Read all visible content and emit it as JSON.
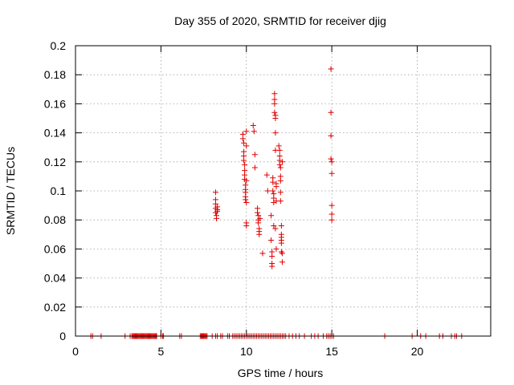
{
  "chart_data": {
    "type": "scatter",
    "title": "Day 355 of 2020, SRMTID for receiver djig",
    "xlabel": "GPS time / hours",
    "ylabel": "SRMTID / TECUs",
    "xlim": [
      0,
      24.3
    ],
    "ylim": [
      0,
      0.2
    ],
    "xticks": [
      0,
      5,
      10,
      15,
      20
    ],
    "xtick_labels": [
      "0",
      "5",
      "10",
      "15",
      "20"
    ],
    "yticks": [
      0,
      0.02,
      0.04,
      0.06,
      0.08,
      0.1,
      0.12,
      0.14,
      0.16,
      0.18,
      0.2
    ],
    "ytick_labels": [
      "0",
      "0.02",
      "0.04",
      "0.06",
      "0.08",
      "0.1",
      "0.12",
      "0.14",
      "0.16",
      "0.18",
      "0.2"
    ],
    "grid": true,
    "marker": "plus",
    "marker_color": "#e00000",
    "series": [
      {
        "x": [
          8.2,
          8.2,
          8.2,
          8.2,
          8.2,
          8.25,
          8.25,
          8.3,
          8.3,
          8.3,
          9.8,
          9.8,
          9.85,
          9.85,
          9.85,
          9.85,
          9.9,
          9.9,
          9.9,
          9.9,
          9.95,
          9.95,
          9.95,
          9.95,
          9.95,
          10.0,
          10.0,
          10.0,
          10.0,
          10.0,
          10.0,
          10.4,
          10.45,
          10.5,
          10.5,
          10.65,
          10.65,
          10.7,
          10.7,
          10.7,
          10.75,
          10.75,
          10.75,
          10.8,
          10.95,
          11.2,
          11.25,
          11.45,
          11.45,
          11.5,
          11.5,
          11.5,
          11.5,
          11.55,
          11.55,
          11.55,
          11.6,
          11.6,
          11.6,
          11.6,
          11.65,
          11.65,
          11.65,
          11.65,
          11.7,
          11.7,
          11.7,
          11.7,
          11.7,
          11.75,
          11.75,
          11.75,
          11.75,
          11.9,
          11.95,
          11.95,
          11.95,
          11.95,
          12.0,
          12.0,
          12.0,
          12.0,
          12.0,
          12.05,
          12.05,
          12.05,
          12.05,
          12.05,
          12.05,
          12.1,
          12.1,
          12.1,
          14.95,
          14.95,
          14.95,
          14.95,
          15.0,
          15.0,
          15.0,
          15.0,
          15.0
        ],
        "y": [
          0.099,
          0.094,
          0.091,
          0.088,
          0.085,
          0.083,
          0.081,
          0.089,
          0.087,
          0.086,
          0.139,
          0.136,
          0.133,
          0.127,
          0.124,
          0.121,
          0.118,
          0.114,
          0.111,
          0.108,
          0.104,
          0.101,
          0.099,
          0.096,
          0.094,
          0.092,
          0.141,
          0.131,
          0.078,
          0.076,
          0.107,
          0.145,
          0.141,
          0.125,
          0.116,
          0.088,
          0.085,
          0.083,
          0.08,
          0.078,
          0.074,
          0.072,
          0.07,
          0.081,
          0.057,
          0.111,
          0.1,
          0.083,
          0.066,
          0.058,
          0.055,
          0.05,
          0.048,
          0.109,
          0.106,
          0.1,
          0.098,
          0.095,
          0.092,
          0.076,
          0.167,
          0.163,
          0.16,
          0.154,
          0.152,
          0.15,
          0.14,
          0.128,
          0.074,
          0.105,
          0.103,
          0.093,
          0.06,
          0.131,
          0.128,
          0.124,
          0.121,
          0.118,
          0.116,
          0.11,
          0.107,
          0.099,
          0.093,
          0.076,
          0.07,
          0.068,
          0.066,
          0.064,
          0.058,
          0.057,
          0.051,
          0.12,
          0.184,
          0.154,
          0.138,
          0.122,
          0.12,
          0.112,
          0.09,
          0.084,
          0.08
        ]
      },
      {
        "x": [
          0.9,
          1.0,
          1.5,
          2.9,
          3.2,
          3.3,
          3.35,
          3.4,
          3.45,
          3.5,
          3.55,
          3.6,
          3.65,
          3.7,
          3.75,
          3.8,
          3.85,
          3.9,
          3.95,
          4.0,
          4.05,
          4.1,
          4.15,
          4.2,
          4.25,
          4.3,
          4.35,
          4.4,
          4.45,
          4.5,
          4.55,
          4.6,
          4.65,
          4.7,
          4.75,
          5.0,
          5.1,
          5.15,
          6.1,
          6.2,
          7.3,
          7.35,
          7.4,
          7.45,
          7.5,
          7.55,
          7.6,
          7.65,
          7.7,
          8.0,
          8.2,
          8.3,
          8.5,
          8.6,
          8.9,
          9.0,
          9.2,
          9.3,
          9.4,
          9.5,
          9.6,
          9.7,
          9.8,
          9.9,
          10.0,
          10.1,
          10.2,
          10.3,
          10.4,
          10.5,
          10.6,
          10.7,
          10.8,
          10.9,
          11.0,
          11.1,
          11.2,
          11.3,
          11.4,
          11.5,
          11.6,
          11.7,
          11.8,
          11.9,
          12.0,
          12.1,
          12.2,
          12.3,
          12.5,
          12.7,
          12.9,
          13.1,
          13.4,
          13.8,
          14.0,
          14.2,
          14.5,
          14.7,
          14.8,
          14.9,
          15.0,
          15.1,
          18.1,
          19.7,
          20.2,
          20.5,
          21.3,
          21.5,
          22.0,
          22.2,
          22.3,
          22.6
        ],
        "y": [
          0,
          0,
          0,
          0,
          0,
          0,
          0,
          0,
          0,
          0,
          0,
          0,
          0,
          0,
          0,
          0,
          0,
          0,
          0,
          0,
          0,
          0,
          0,
          0,
          0,
          0,
          0,
          0,
          0,
          0,
          0,
          0,
          0,
          0,
          0,
          0,
          0,
          0,
          0,
          0,
          0,
          0,
          0,
          0,
          0,
          0,
          0,
          0,
          0,
          0,
          0,
          0,
          0,
          0,
          0,
          0,
          0,
          0,
          0,
          0,
          0,
          0,
          0,
          0,
          0,
          0,
          0,
          0,
          0,
          0,
          0,
          0,
          0,
          0,
          0,
          0,
          0,
          0,
          0,
          0,
          0,
          0,
          0,
          0,
          0,
          0,
          0,
          0,
          0,
          0,
          0,
          0,
          0,
          0,
          0,
          0,
          0,
          0,
          0,
          0,
          0,
          0,
          0,
          0,
          0,
          0,
          0,
          0,
          0,
          0,
          0,
          0
        ]
      }
    ]
  }
}
